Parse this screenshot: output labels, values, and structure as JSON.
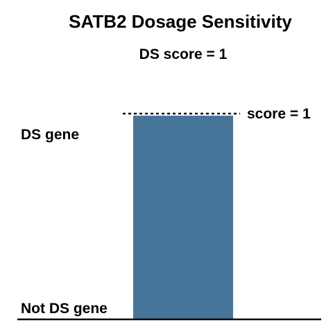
{
  "chart_data": {
    "type": "bar",
    "title": "SATB2 Dosage Sensitivity",
    "subtitle": "DS score = 1",
    "categories": [
      "SATB2"
    ],
    "values": [
      1
    ],
    "ylim": [
      0,
      1
    ],
    "y_annotations": {
      "top": "DS gene",
      "bottom": "Not DS gene"
    },
    "reference_line": {
      "value": 1,
      "label": "score = 1",
      "style": "dotted"
    },
    "grid": false,
    "legend": "none",
    "bar_color": "#47759a",
    "axis_color": "#000000"
  }
}
